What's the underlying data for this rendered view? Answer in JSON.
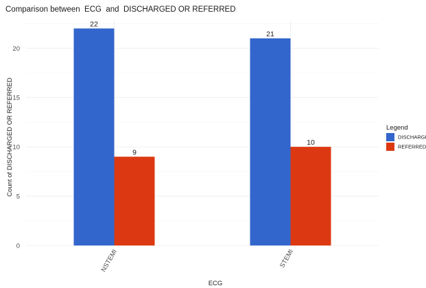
{
  "chart_data": {
    "type": "bar",
    "title": "Comparison between  ECG  and  DISCHARGED OR REFERRED",
    "xlabel": "ECG",
    "ylabel": "Count of DISCHARGED OR REFERRED",
    "categories": [
      "NSTEMI",
      "STEMI"
    ],
    "series": [
      {
        "name": "DISCHARGED",
        "values": [
          22,
          21
        ],
        "color": "#3366cc"
      },
      {
        "name": "REFERRED",
        "values": [
          9,
          10
        ],
        "color": "#dc3912"
      }
    ],
    "ylim": [
      0,
      22.8
    ],
    "yticks": [
      0,
      5,
      10,
      15,
      20
    ],
    "grid": true,
    "legend": {
      "title": "Legend",
      "position": "right"
    },
    "data_labels": true
  }
}
